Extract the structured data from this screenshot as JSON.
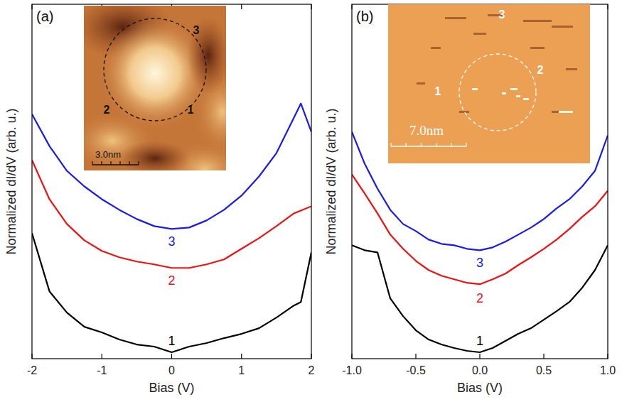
{
  "chart_data": [
    {
      "type": "line",
      "title": "(a)",
      "x_label": "Bias (V)",
      "y_label": "Normalized dI/dV (arb. u.)",
      "x": [
        -2,
        -1.75,
        -1.5,
        -1.25,
        -1,
        -0.75,
        -0.5,
        -0.25,
        0,
        0.25,
        0.5,
        0.75,
        1,
        1.25,
        1.5,
        1.75,
        1.85,
        2
      ],
      "series": [
        {
          "name": "1",
          "color": "#000000",
          "values": [
            3.54,
            1.9,
            1.3,
            0.9,
            0.74,
            0.54,
            0.4,
            0.34,
            0.18,
            0.34,
            0.44,
            0.58,
            0.7,
            0.86,
            1.16,
            1.5,
            1.6,
            3.0
          ]
        },
        {
          "name": "2",
          "color": "#ee1111",
          "values": [
            5.6,
            4.5,
            3.8,
            3.34,
            3.04,
            2.86,
            2.74,
            2.66,
            2.56,
            2.56,
            2.66,
            2.8,
            3.1,
            3.4,
            3.74,
            4.1,
            4.18,
            4.3
          ]
        },
        {
          "name": "3",
          "color": "#1a1aee",
          "values": [
            6.9,
            6.0,
            5.3,
            4.86,
            4.5,
            4.2,
            3.94,
            3.74,
            3.66,
            3.7,
            3.9,
            4.2,
            4.6,
            5.14,
            5.8,
            6.8,
            7.2,
            6.4
          ]
        }
      ],
      "xlim": [
        -2,
        2
      ],
      "xticks": [
        -2,
        -1,
        0,
        1,
        2
      ],
      "ylim": [
        0,
        10
      ],
      "tick_labels": "x",
      "annotations": [
        "3.0nm",
        "1",
        "2",
        "3"
      ]
    },
    {
      "type": "line",
      "title": "(b)",
      "x_label": "Bias (V)",
      "y_label": "Normalized dI/dV (arb. u.)",
      "x": [
        -1,
        -0.9,
        -0.8,
        -0.7,
        -0.6,
        -0.5,
        -0.4,
        -0.3,
        -0.2,
        -0.1,
        0,
        0.1,
        0.2,
        0.3,
        0.4,
        0.5,
        0.6,
        0.7,
        0.8,
        0.9,
        1
      ],
      "series": [
        {
          "name": "1",
          "color": "#000000",
          "values": [
            3.2,
            3.06,
            3.0,
            1.7,
            1.2,
            0.8,
            0.54,
            0.4,
            0.3,
            0.22,
            0.18,
            0.3,
            0.5,
            0.7,
            0.86,
            1.1,
            1.34,
            1.6,
            2.0,
            2.5,
            3.2
          ]
        },
        {
          "name": "2",
          "color": "#ee1111",
          "values": [
            5.2,
            4.66,
            4.1,
            3.5,
            3.1,
            2.76,
            2.5,
            2.34,
            2.24,
            2.14,
            2.1,
            2.24,
            2.4,
            2.64,
            2.86,
            3.1,
            3.36,
            3.66,
            4.0,
            4.3,
            4.74
          ]
        },
        {
          "name": "3",
          "color": "#1a1aee",
          "values": [
            6.4,
            5.5,
            4.8,
            4.2,
            3.8,
            3.6,
            3.36,
            3.24,
            3.2,
            3.1,
            3.06,
            3.14,
            3.3,
            3.5,
            3.7,
            3.94,
            4.24,
            4.5,
            4.86,
            5.3,
            6.3
          ]
        }
      ],
      "xlim": [
        -1,
        1
      ],
      "xticks": [
        {
          "value": -1,
          "label": "-1.0"
        },
        {
          "value": -0.5,
          "label": "-0.5"
        },
        {
          "value": 0,
          "label": "0.0"
        },
        {
          "value": 0.5,
          "label": "0.5"
        },
        {
          "value": 1,
          "label": "1.0"
        }
      ],
      "ylim": [
        0,
        10
      ],
      "tick_labels": "x",
      "annotations": [
        "7.0nm",
        "1",
        "2",
        "3"
      ]
    }
  ]
}
